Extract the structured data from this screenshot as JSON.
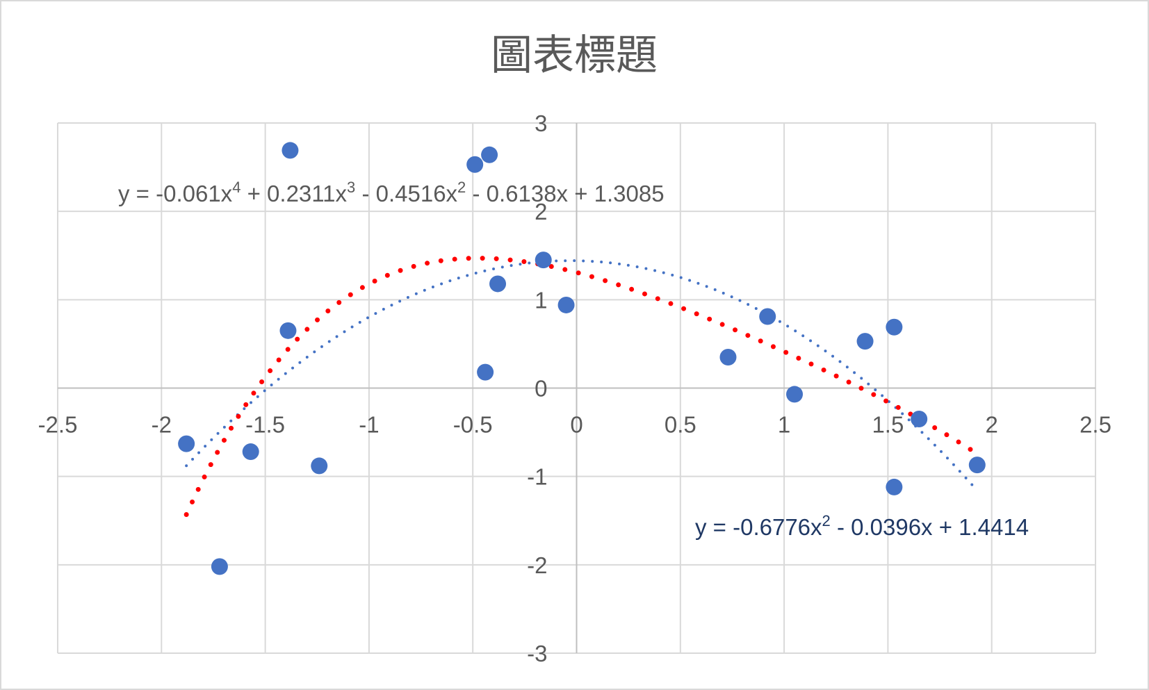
{
  "chart_data": {
    "type": "scatter",
    "title": "圖表標題",
    "xlabel": "",
    "ylabel": "",
    "xlim": [
      -2.5,
      2.5
    ],
    "ylim": [
      -3,
      3
    ],
    "x_ticks": [
      -2.5,
      -2,
      -1.5,
      -1,
      -0.5,
      0,
      0.5,
      1,
      1.5,
      2,
      2.5
    ],
    "y_ticks": [
      -3,
      -2,
      -1,
      0,
      1,
      2,
      3
    ],
    "x_tick_labels": [
      "-2.5",
      "-2",
      "-1.5",
      "-1",
      "-0.5",
      "0",
      "0.5",
      "1",
      "1.5",
      "2",
      "2.5"
    ],
    "y_tick_labels": [
      "-3",
      "-2",
      "-1",
      "0",
      "1",
      "2",
      "3"
    ],
    "grid": true,
    "legend": "none",
    "points_color": "#4472c4",
    "series": [
      {
        "x": [
          -1.88,
          -1.72,
          -1.57,
          -1.38,
          -1.39,
          -1.24,
          -0.49,
          -0.42,
          -0.44,
          -0.38,
          -0.16,
          -0.05,
          0.73,
          0.92,
          1.05,
          1.39,
          1.53,
          1.53,
          1.65,
          1.93
        ],
        "y": [
          -0.63,
          -2.02,
          -0.72,
          2.69,
          0.65,
          -0.88,
          2.53,
          2.64,
          0.18,
          1.18,
          1.45,
          0.94,
          0.35,
          0.81,
          -0.07,
          0.53,
          0.69,
          -1.12,
          -0.35,
          -0.87
        ]
      }
    ],
    "trendlines": [
      {
        "kind": "polynomial-2",
        "coefficients": [
          1.4414,
          -0.0396,
          -0.6776
        ],
        "x_range": [
          -1.88,
          1.93
        ],
        "color": "#4472c4",
        "equation": {
          "lhs": "y = ",
          "t1": "-0.6776x",
          "e1": "2",
          "t2": " - 0.0396x + 1.4414",
          "color": "#1f3864"
        }
      },
      {
        "kind": "polynomial-4",
        "coefficients": [
          1.3085,
          -0.6138,
          -0.4516,
          0.2311,
          -0.061
        ],
        "x_range": [
          -1.88,
          1.93
        ],
        "color": "#ff0000",
        "equation": {
          "lhs": "y = ",
          "t1": "-0.061x",
          "e1": "4",
          "t2": " + 0.2311x",
          "e2": "3",
          "t3": " - 0.4516x",
          "e3": "2",
          "t4": " - 0.6138x + 1.3085",
          "color": "#595959"
        }
      }
    ]
  }
}
